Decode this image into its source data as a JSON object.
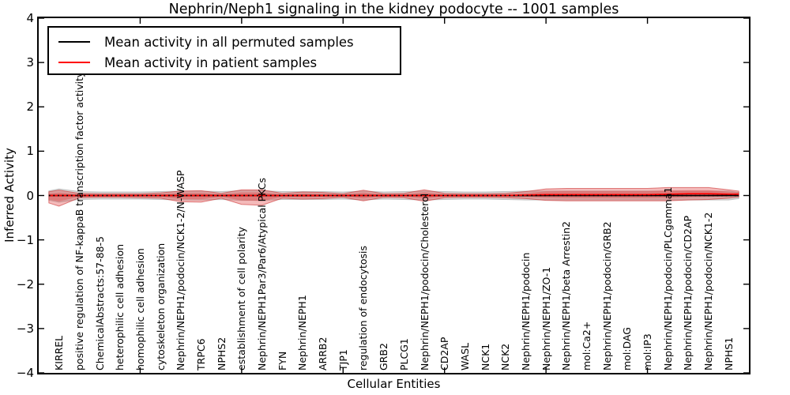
{
  "title": "Nephrin/Neph1 signaling in the kidney podocyte -- 1001 samples",
  "axes": {
    "x_label": "Cellular Entities",
    "y_label": "Inferred Activity",
    "y_ticks": [
      "4",
      "3",
      "2",
      "1",
      "0",
      "−1",
      "−2",
      "−3",
      "−4"
    ],
    "y_tick_values": [
      4,
      3,
      2,
      1,
      0,
      -1,
      -2,
      -3,
      -4
    ]
  },
  "legend": {
    "items": [
      {
        "label": "Mean activity in all permuted samples",
        "color": "#000000"
      },
      {
        "label": "Mean activity in patient samples",
        "color": "#ff0000"
      }
    ]
  },
  "colors": {
    "permuted_line": "#000000",
    "patient_line": "#ff0000",
    "zero_dotted_line": "#000000",
    "permuted_band_fill": "rgba(150,150,150,0.35)",
    "permuted_band_stroke": "rgba(150,150,150,0.5)",
    "patient_band_fill": "rgba(222,45,45,0.33)",
    "patient_band_stroke": "rgba(200,35,35,0.55)"
  },
  "chart_data": {
    "type": "area",
    "title": "Nephrin/Neph1 signaling in the kidney podocyte -- 1001 samples",
    "xlabel": "Cellular Entities",
    "ylabel": "Inferred Activity",
    "ylim": [
      -4,
      4
    ],
    "xlim": [
      0,
      35
    ],
    "x_major_tick_step": 5,
    "grid": false,
    "legend_position": "upper left",
    "categories": [
      "KIRREL",
      "positive regulation of NF-kappaB transcription factor activity",
      "ChemicalAbstracts:57-88-5",
      "heterophilic cell adhesion",
      "homophilic cell adhesion",
      "cytoskeleton organization",
      "Nephrin/NEPH1/podocin/NCK1-2/N-WASP",
      "TRPC6",
      "NPHS2",
      "establishment of cell polarity",
      "Nephrin/NEPH1Par3/Par6/Atypical PKCs",
      "FYN",
      "Nephrin/NEPH1",
      "ARRB2",
      "TJP1",
      "regulation of endocytosis",
      "GRB2",
      "PLCG1",
      "Nephrin/NEPH1/podocin/Cholesterol",
      "CD2AP",
      "WASL",
      "NCK1",
      "NCK2",
      "Nephrin/NEPH1/podocin",
      "Nephrin/NEPH1/ZO-1",
      "Nephrin/NEPH1/beta Arrestin2",
      "mol:Ca2+",
      "Nephrin/NEPH1/podocin/GRB2",
      "mol:DAG",
      "mol:IP3",
      "Nephrin/NEPH1/podocin/PLCgamma1",
      "Nephrin/NEPH1/podocin/CD2AP",
      "Nephrin/NEPH1/podocin/NCK1-2",
      "NPHS1"
    ],
    "series": [
      {
        "name": "Mean activity in all permuted samples",
        "values": [
          0,
          0,
          0,
          0,
          0,
          0,
          0,
          0,
          0,
          0,
          0,
          0,
          0,
          0,
          0,
          0,
          0,
          0,
          0,
          0,
          0,
          0,
          0,
          0,
          0,
          0,
          0,
          0,
          0,
          0,
          0,
          0,
          0,
          0
        ]
      },
      {
        "name": "Mean activity in patient samples",
        "values": [
          0,
          0,
          0,
          0,
          0,
          0,
          0,
          0,
          0,
          0,
          0,
          0,
          0,
          0,
          0,
          0,
          0,
          0,
          0,
          0,
          0,
          0,
          0,
          0.01,
          0.02,
          0.02,
          0.02,
          0.02,
          0.02,
          0.02,
          0.03,
          0.04,
          0.04,
          0.03
        ]
      },
      {
        "name": "Permuted samples spread (half-band)",
        "values": [
          0.15,
          0.09,
          0.08,
          0.08,
          0.08,
          0.09,
          0.1,
          0.1,
          0.09,
          0.11,
          0.11,
          0.09,
          0.09,
          0.09,
          0.08,
          0.1,
          0.08,
          0.09,
          0.1,
          0.09,
          0.08,
          0.08,
          0.09,
          0.1,
          0.1,
          0.1,
          0.1,
          0.1,
          0.1,
          0.1,
          0.1,
          0.1,
          0.1,
          0.1
        ]
      },
      {
        "name": "Patient samples spread above mean",
        "values": [
          0.12,
          0.05,
          0.04,
          0.04,
          0.04,
          0.06,
          0.1,
          0.11,
          0.05,
          0.13,
          0.13,
          0.05,
          0.08,
          0.07,
          0.04,
          0.12,
          0.04,
          0.05,
          0.13,
          0.05,
          0.04,
          0.04,
          0.05,
          0.08,
          0.13,
          0.14,
          0.14,
          0.14,
          0.14,
          0.14,
          0.15,
          0.14,
          0.14,
          0.1
        ]
      },
      {
        "name": "Patient samples spread below mean",
        "values": [
          0.24,
          0.05,
          0.04,
          0.04,
          0.05,
          0.06,
          0.14,
          0.15,
          0.06,
          0.2,
          0.22,
          0.06,
          0.08,
          0.07,
          0.04,
          0.12,
          0.04,
          0.05,
          0.13,
          0.05,
          0.04,
          0.04,
          0.05,
          0.08,
          0.13,
          0.14,
          0.14,
          0.14,
          0.14,
          0.14,
          0.15,
          0.14,
          0.13,
          0.09
        ]
      }
    ]
  }
}
